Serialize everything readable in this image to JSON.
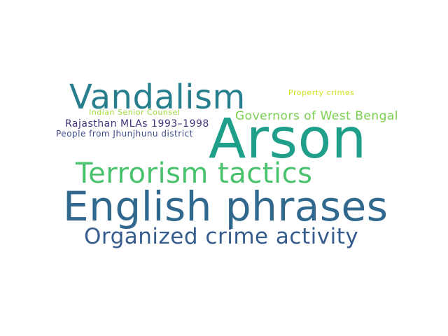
{
  "words": {
    "arson": {
      "text": "Arson",
      "color": "#1f9e89"
    },
    "english": {
      "text": "English phrases",
      "color": "#31688e"
    },
    "vandalism": {
      "text": "Vandalism",
      "color": "#277f8e"
    },
    "terrorism": {
      "text": "Terrorism tactics",
      "color": "#4ac16d"
    },
    "organized": {
      "text": "Organized crime activity",
      "color": "#365c8d"
    },
    "governors": {
      "text": "Governors of West Bengal",
      "color": "#7ad151"
    },
    "rajasthan": {
      "text": "Rajasthan MLAs 1993–1998",
      "color": "#46327e"
    },
    "people": {
      "text": "People from Jhunjhunu district",
      "color": "#3e4a89"
    },
    "counsel": {
      "text": "Indian Senior Counsel",
      "color": "#a0da39"
    },
    "property": {
      "text": "Property crimes",
      "color": "#d0e11c"
    }
  }
}
